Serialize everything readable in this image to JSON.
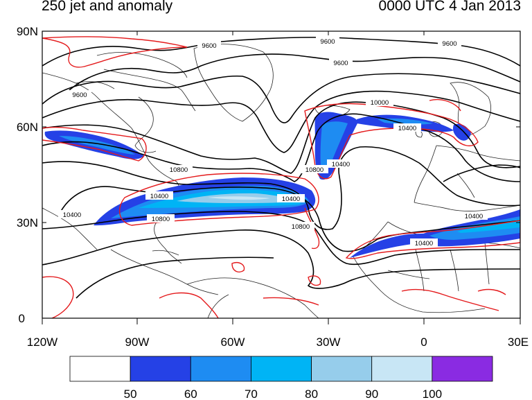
{
  "title_left": "250 jet and anomaly",
  "title_right": "0000 UTC 4 Jan 2013",
  "axes": {
    "lat_labels": [
      "90N",
      "60N",
      "30N",
      "0"
    ],
    "lon_labels": [
      "120W",
      "90W",
      "60W",
      "30W",
      "0",
      "30E"
    ]
  },
  "contour_labels": {
    "c1": "9600",
    "c2": "9600",
    "c3": "9600",
    "c4": "9600",
    "c5": "9600",
    "c6": "10000",
    "c7": "10400",
    "c8": "10800",
    "c9": "10800",
    "c10": "10400",
    "c11": "10400",
    "c12": "10800",
    "c13": "10400",
    "c14": "10400",
    "c15": "10400",
    "c16": "10800",
    "c17": "10400"
  },
  "colorbar": {
    "labels": [
      "50",
      "60",
      "70",
      "80",
      "90",
      "100"
    ],
    "colors": [
      "#ffffff",
      "#2541e6",
      "#1e8cf2",
      "#00b4f5",
      "#96cdeb",
      "#c8e6f5",
      "#8a2be2"
    ]
  },
  "colors": {
    "contour": "#000000",
    "anomaly": "#e41a1c",
    "coast": "#000000"
  }
}
